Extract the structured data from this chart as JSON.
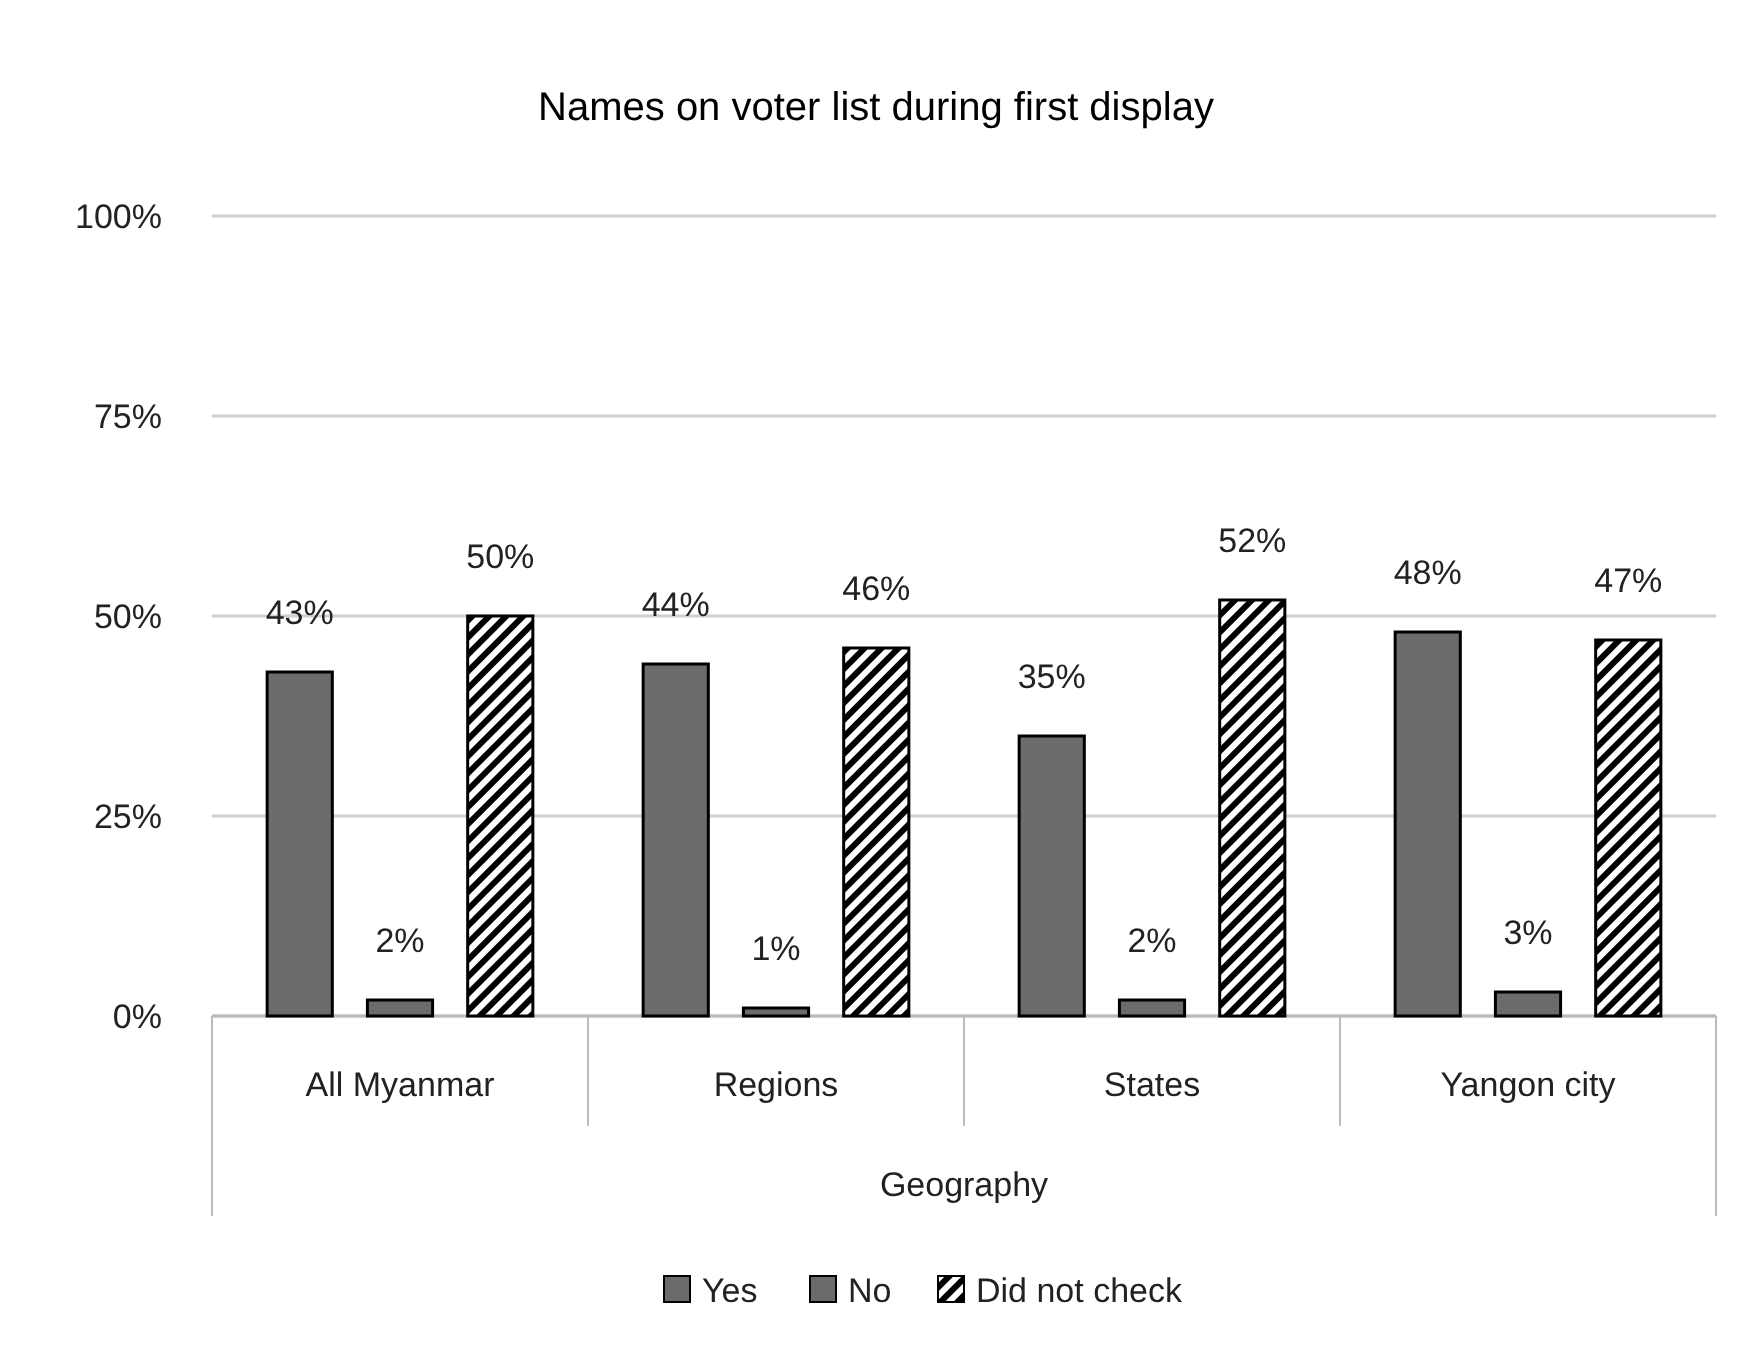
{
  "chart_data": {
    "type": "bar",
    "title": "Names on voter list during first display",
    "xlabel": "Geography",
    "categories": [
      "All Myanmar",
      "Regions",
      "States",
      "Yangon city"
    ],
    "series": [
      {
        "name": "Yes",
        "color": "#6b6b6b",
        "values": [
          43,
          44,
          35,
          48
        ],
        "value_labels": [
          "43%",
          "44%",
          "35%",
          "48%"
        ]
      },
      {
        "name": "No",
        "color": "#6b6b6b",
        "values": [
          2,
          1,
          2,
          3
        ],
        "value_labels": [
          "2%",
          "1%",
          "2%",
          "3%"
        ]
      },
      {
        "name": "Did not check",
        "color": "#000000",
        "values": [
          50,
          46,
          52,
          47
        ],
        "value_labels": [
          "50%",
          "46%",
          "52%",
          "47%"
        ]
      }
    ],
    "ylim": [
      0,
      100
    ],
    "yticks": [
      {
        "value": 0,
        "label": "0%"
      },
      {
        "value": 25,
        "label": "25%"
      },
      {
        "value": 50,
        "label": "50%"
      },
      {
        "value": 75,
        "label": "75%"
      },
      {
        "value": 100,
        "label": "100%"
      }
    ],
    "grid": "y",
    "legend": "bottom"
  }
}
